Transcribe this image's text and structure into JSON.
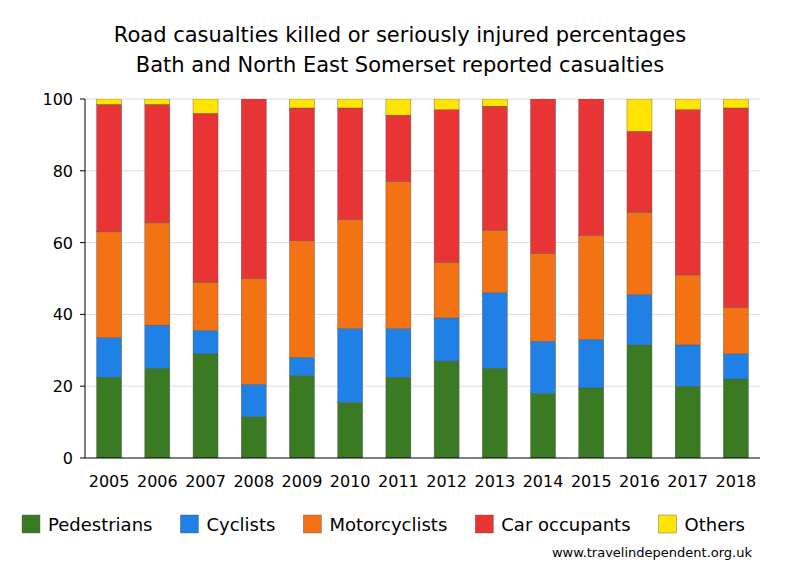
{
  "chart_data": {
    "type": "bar",
    "title": "Road casualties killed or seriously injured percentages",
    "subtitle": "Bath and North East Somerset reported casualties",
    "annotations": [
      "www.travelindependent.org.uk"
    ],
    "categories": [
      "2005",
      "2006",
      "2007",
      "2008",
      "2009",
      "2010",
      "2011",
      "2012",
      "2013",
      "2014",
      "2015",
      "2016",
      "2017",
      "2018"
    ],
    "series": [
      {
        "name": "Pedestrians",
        "color": "#3a7a22",
        "values": [
          22.5,
          25,
          29,
          11.5,
          23,
          15.5,
          22.5,
          27,
          25,
          18,
          19.5,
          31.5,
          20,
          22
        ]
      },
      {
        "name": "Cyclists",
        "color": "#1f80e6",
        "values": [
          11,
          12,
          6.5,
          9,
          5,
          20.5,
          13.5,
          12,
          21,
          14.5,
          13.5,
          14,
          11.5,
          7
        ]
      },
      {
        "name": "Motorcyclists",
        "color": "#f27214",
        "values": [
          29.5,
          28.5,
          13.5,
          29.5,
          32.5,
          30.5,
          41,
          15.5,
          17.5,
          24.5,
          29,
          23,
          19.5,
          13
        ]
      },
      {
        "name": "Car occupants",
        "color": "#e83434",
        "values": [
          35.5,
          33,
          47,
          50,
          37,
          31,
          18.5,
          42.5,
          34.5,
          43,
          38,
          22.5,
          46,
          55.5
        ]
      },
      {
        "name": "Others",
        "color": "#ffe400",
        "values": [
          1.5,
          1.5,
          4,
          0,
          2.5,
          2.5,
          4.5,
          3,
          2,
          0,
          0,
          9,
          3,
          2.5
        ]
      }
    ],
    "ylim": [
      0,
      100
    ],
    "yticks": [
      0,
      20,
      40,
      60,
      80,
      100
    ],
    "stacked": true,
    "grid": true,
    "legend": "bottom"
  }
}
